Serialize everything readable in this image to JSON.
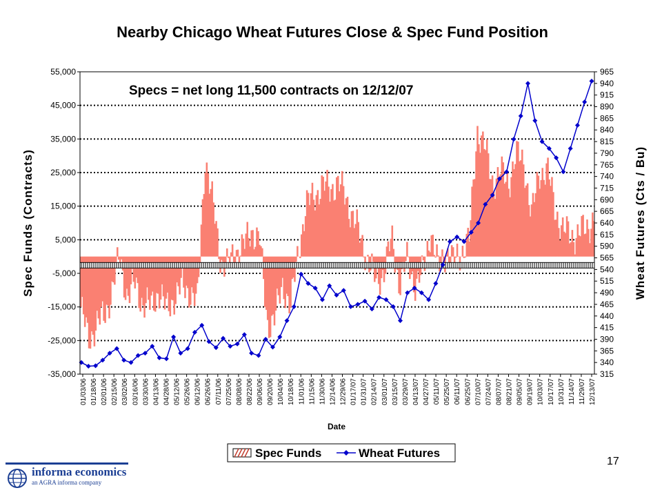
{
  "colors": {
    "spec": "#fa8072",
    "wheat": "#0000cc",
    "baseline": "#000000",
    "logo": "#1c3f94"
  },
  "page_number": "17",
  "logo": {
    "name": "informa economics",
    "tagline": "an AGRA informa company"
  },
  "chart_data": {
    "type": "bar+line",
    "title": "Nearby Chicago Wheat Futures Close & Spec Fund Position",
    "annotation": "Specs = net long 11,500 contracts on 12/12/07",
    "xlabel": "Date",
    "ylabel_left": "Spec Funds (Contracts)",
    "ylabel_right": "Wheat Futures (Cts / Bu)",
    "ylim_left": [
      -35000,
      55000
    ],
    "ylim_right": [
      315,
      965
    ],
    "yticks_left": [
      "55,000",
      "45,000",
      "35,000",
      "25,000",
      "15,000",
      "5,000",
      "-5,000",
      "-15,000",
      "-25,000",
      "-35,000"
    ],
    "yticks_right": [
      "965",
      "940",
      "915",
      "890",
      "865",
      "840",
      "815",
      "790",
      "765",
      "740",
      "715",
      "690",
      "665",
      "640",
      "615",
      "590",
      "565",
      "540",
      "515",
      "490",
      "465",
      "440",
      "415",
      "390",
      "365",
      "340",
      "315"
    ],
    "x_tick_labels": [
      "01/03/06",
      "01/18/06",
      "02/01/06",
      "02/15/06",
      "03/02/06",
      "03/16/06",
      "03/30/06",
      "04/13/06",
      "04/28/06",
      "05/12/06",
      "05/26/06",
      "06/12/06",
      "06/26/06",
      "07/11/06",
      "07/25/06",
      "08/08/06",
      "08/22/06",
      "09/06/06",
      "09/20/06",
      "10/04/06",
      "10/18/06",
      "11/01/06",
      "11/15/06",
      "11/30/06",
      "12/14/06",
      "12/29/06",
      "01/17/07",
      "01/31/07",
      "02/14/07",
      "03/01/07",
      "03/15/07",
      "03/29/07",
      "04/13/07",
      "04/27/07",
      "05/11/07",
      "05/25/07",
      "06/11/07",
      "06/25/07",
      "07/10/07",
      "07/24/07",
      "08/07/07",
      "08/21/07",
      "09/05/07",
      "09/19/07",
      "10/03/07",
      "10/17/07",
      "10/31/07",
      "11/14/07",
      "11/29/07",
      "12/13/07"
    ],
    "grid": "horizontal dotted",
    "legend_position": "bottom-center",
    "series": [
      {
        "name": "Spec Funds",
        "axis": "left",
        "kind": "bar",
        "values": [
          -15000,
          -25000,
          -20000,
          -18000,
          -10000,
          0,
          -12000,
          -8000,
          -14000,
          -15000,
          -10000,
          -16000,
          -12000,
          -9000,
          -10000,
          -14000,
          30000,
          15000,
          -1000,
          -3000,
          2000,
          3000,
          8000,
          5000,
          -20000,
          -18000,
          -8000,
          -15000,
          2000,
          15000,
          18000,
          21000,
          20000,
          22000,
          18000,
          12000,
          5000,
          -1000,
          -8000,
          -4000,
          5000,
          -8000,
          -1000,
          -8000,
          -5000,
          8000,
          -4000,
          2000,
          -2000,
          2000,
          5000,
          38000,
          32000,
          22000,
          25000,
          22000,
          30000,
          28000,
          12000,
          25000,
          26000,
          14000,
          8000,
          6000,
          7000,
          8000,
          12000
        ]
      },
      {
        "name": "Wheat Futures",
        "axis": "right",
        "kind": "line",
        "values": [
          340,
          332,
          333,
          345,
          360,
          370,
          345,
          340,
          355,
          360,
          375,
          350,
          348,
          395,
          360,
          370,
          405,
          420,
          385,
          372,
          392,
          375,
          380,
          400,
          360,
          355,
          390,
          373,
          395,
          430,
          460,
          530,
          510,
          500,
          475,
          505,
          485,
          495,
          460,
          465,
          472,
          455,
          480,
          475,
          460,
          430,
          490,
          500,
          490,
          475,
          510,
          550,
          600,
          610,
          600,
          620,
          640,
          680,
          700,
          735,
          750,
          820,
          870,
          940,
          860,
          815,
          800,
          780,
          750,
          800,
          850,
          900,
          945
        ]
      }
    ]
  }
}
